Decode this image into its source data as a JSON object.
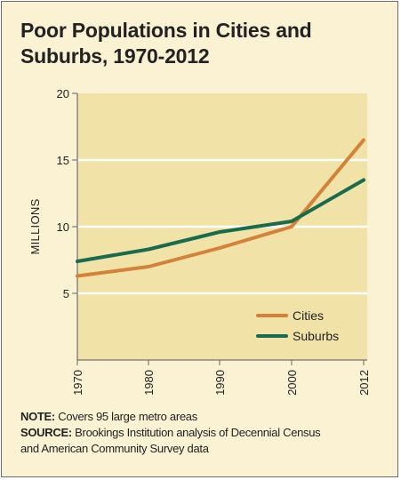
{
  "title_lines": [
    "Poor Populations in Cities and",
    "Suburbs, 1970-2012"
  ],
  "note": {
    "label": "NOTE:",
    "text": " Covers 95 large metro areas"
  },
  "source": {
    "label": "SOURCE:",
    "text": " Brookings Institution analysis of Decennial Census",
    "text_line2": "and American Community Survey data"
  },
  "colors": {
    "background": "#fbf1d3",
    "plot_bg": "#f1e3a7",
    "grid": "#ffffff",
    "cities": "#d4813a",
    "suburbs": "#186b4c",
    "text": "#222222"
  },
  "chart_data": {
    "type": "line",
    "title": "Poor Populations in Cities and Suburbs, 1970-2012",
    "ylabel": "MILLIONS",
    "xlabel": "",
    "x": [
      1970,
      1980,
      1990,
      2000,
      2012
    ],
    "x_tick_labels": [
      "1970",
      "1980",
      "1990",
      "2000",
      "2012"
    ],
    "ylim": [
      0,
      20
    ],
    "y_ticks": [
      5,
      10,
      15,
      20
    ],
    "y_tick_labels": [
      "5",
      "10",
      "15",
      "20"
    ],
    "grid": true,
    "legend_position": "bottom-right",
    "series": [
      {
        "name": "Cities",
        "color": "#d4813a",
        "values": [
          6.3,
          7.0,
          8.4,
          10.0,
          16.5
        ]
      },
      {
        "name": "Suburbs",
        "color": "#186b4c",
        "values": [
          7.4,
          8.3,
          9.6,
          10.4,
          13.5
        ]
      }
    ]
  }
}
